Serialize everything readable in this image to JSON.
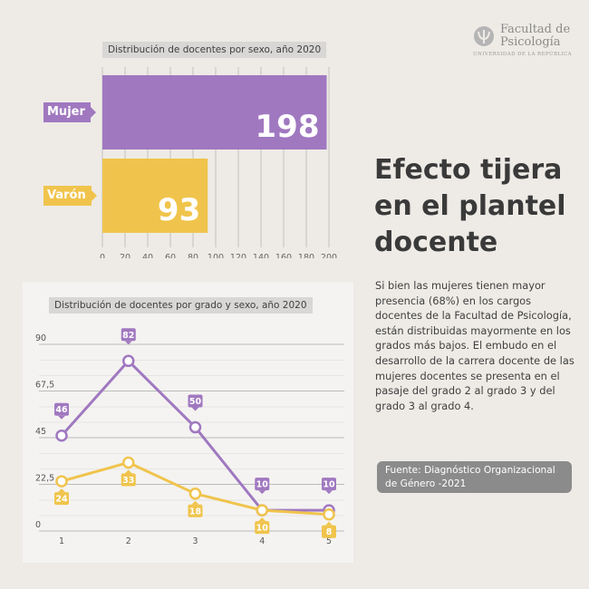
{
  "logo": {
    "name": "Facultad de Psicología",
    "name_line1": "Facultad de",
    "name_line2": "Psicología",
    "subtitle": "UNIVERSIDAD DE LA REPÚBLICA",
    "icon": "psychology-psi-icon"
  },
  "headline": {
    "line1": "Efecto tijera",
    "line2": "en el plantel",
    "line3": "docente"
  },
  "body_text": "Si bien las mujeres tienen mayor presencia (68%) en los cargos docentes de la Facultad de Psicología, están distribuidas mayormente en los grados más bajos. El embudo en el desarrollo de la carrera docente de las mujeres docentes se presenta en el pasaje del grado 2 al grado 3 y del grado 3 al grado 4.",
  "source": {
    "line1": "Fuente: Diagnóstico Organizacional",
    "line2": "de Género -2021"
  },
  "colors": {
    "mujer": "#A078C0",
    "varon": "#F0C44C",
    "background": "#EEEBE6",
    "text": "#3A3A3A",
    "badge": "#8B8B8B"
  },
  "chart_data": [
    {
      "type": "bar",
      "orientation": "horizontal",
      "title": "Distribución de docentes por sexo, año 2020",
      "categories": [
        "Mujer",
        "Varón"
      ],
      "values": [
        198,
        93
      ],
      "value_labels": [
        "198",
        "93"
      ],
      "colors": [
        "#A078C0",
        "#F0C44C"
      ],
      "xlim": [
        0,
        200
      ],
      "xticks": [
        0,
        20,
        40,
        60,
        80,
        100,
        120,
        140,
        160,
        180,
        200
      ],
      "xtick_labels": [
        "0",
        "20",
        "40",
        "60",
        "80",
        "100",
        "120",
        "140",
        "160",
        "180",
        "200"
      ],
      "grid": true
    },
    {
      "type": "line",
      "title": "Distribución de docentes por grado y sexo, año 2020",
      "x": [
        1,
        2,
        3,
        4,
        5
      ],
      "x_labels": [
        "1",
        "2",
        "3",
        "4",
        "5"
      ],
      "series": [
        {
          "color": "#A078C0",
          "values": [
            46,
            82,
            50,
            10,
            10
          ],
          "labels": [
            "46",
            "82",
            "50",
            "10",
            "10"
          ]
        },
        {
          "color": "#F0C44C",
          "values": [
            24,
            33,
            18,
            10,
            8
          ],
          "labels": [
            "24",
            "33",
            "18",
            "10",
            "8"
          ]
        }
      ],
      "ylim": [
        0,
        90
      ],
      "yticks": [
        0,
        22.5,
        45,
        67.5,
        90
      ],
      "ytick_labels": [
        "0",
        "22,5",
        "45",
        "67,5",
        "90"
      ],
      "grid": true
    }
  ]
}
